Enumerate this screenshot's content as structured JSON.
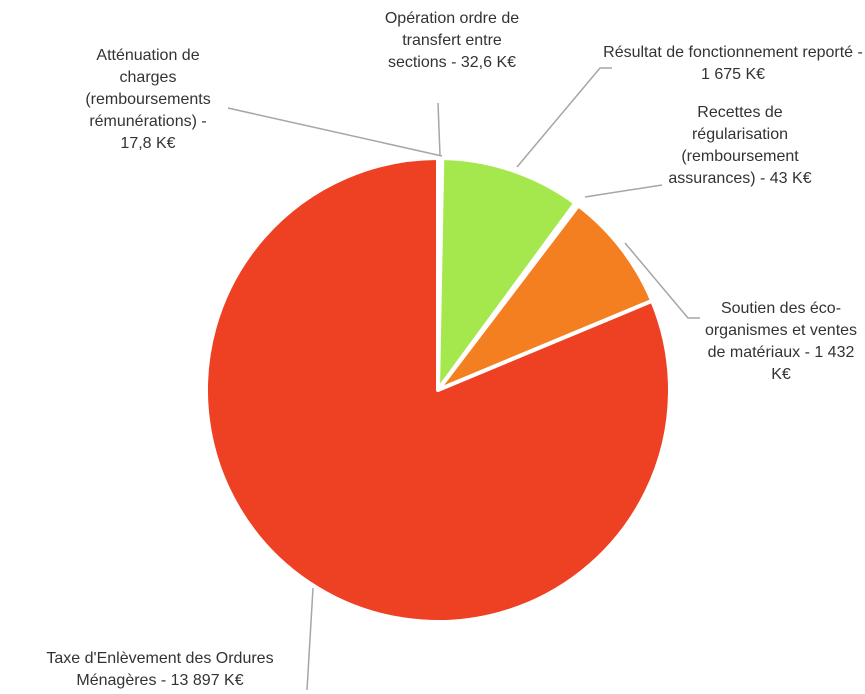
{
  "chart_data": {
    "type": "pie",
    "categories": [
      "Atténuation de charges (remboursements rémunérations) - 17,8 K€",
      "Opération ordre de transfert entre sections - 32,6 K€",
      "Résultat de fonctionnement reporté - 1 675 K€",
      "Recettes de régularisation (remboursement assurances) - 43 K€",
      "Soutien des éco-organismes et ventes de matériaux - 1 432 K€",
      "Taxe d'Enlèvement des Ordures Ménagères - 13 897 K€"
    ],
    "values": [
      17.8,
      32.6,
      1675,
      43,
      1432,
      13897
    ],
    "colors": [
      "#4472c4",
      "#7f7f7f",
      "#a5e84d",
      "#ffc000",
      "#f47f20",
      "#ee4123"
    ]
  }
}
